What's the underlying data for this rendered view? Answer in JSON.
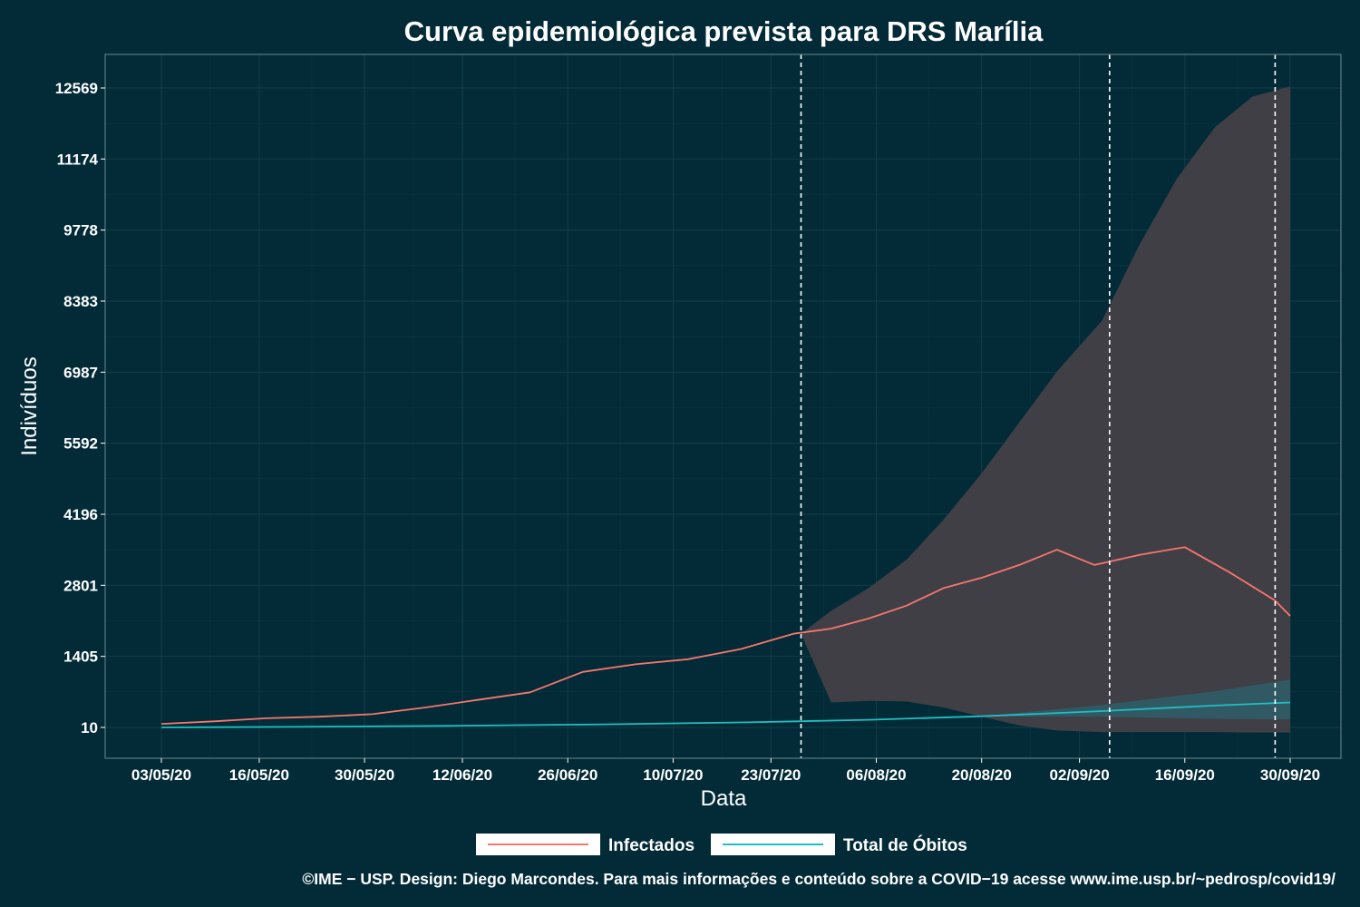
{
  "chart_data": {
    "type": "line",
    "title": "Curva epidemiológica prevista para DRS Marília",
    "xlabel": "Data",
    "ylabel": "Indivíduos",
    "x_range": [
      "2020-05-03",
      "2020-10-01"
    ],
    "y_range": [
      -600,
      13300
    ],
    "y_ticks": [
      10,
      1405,
      2801,
      4196,
      5592,
      6987,
      8383,
      9778,
      11174,
      12569
    ],
    "y_tick_labels": [
      "10",
      "1405",
      "2801",
      "4196",
      "5592",
      "6987",
      "8383",
      "9778",
      "11174",
      "12569"
    ],
    "x_ticks": [
      "2020-05-03",
      "2020-05-16",
      "2020-05-30",
      "2020-06-12",
      "2020-06-26",
      "2020-07-10",
      "2020-07-23",
      "2020-08-06",
      "2020-08-20",
      "2020-09-02",
      "2020-09-16",
      "2020-09-30"
    ],
    "x_tick_labels": [
      "03/05/20",
      "16/05/20",
      "30/05/20",
      "12/06/20",
      "26/06/20",
      "10/07/20",
      "23/07/20",
      "06/08/20",
      "20/08/20",
      "02/09/20",
      "16/09/20",
      "30/09/20"
    ],
    "vlines": [
      "2020-07-27",
      "2020-09-06",
      "2020-09-28"
    ],
    "grid": true,
    "legend_position": "bottom",
    "colors": {
      "background": "#022b37",
      "infectados": "#f8766d",
      "obitos": "#1fbfc4",
      "ribbon_infectados": "#403f46",
      "ribbon_obitos": "#2f5e68",
      "grid": "#133c47",
      "frame": "#5a7a82"
    },
    "series": [
      {
        "name": "Infectados",
        "x": [
          "2020-05-03",
          "2020-05-10",
          "2020-05-17",
          "2020-05-24",
          "2020-05-31",
          "2020-06-07",
          "2020-06-14",
          "2020-06-21",
          "2020-06-28",
          "2020-07-05",
          "2020-07-12",
          "2020-07-19",
          "2020-07-26",
          "2020-07-31",
          "2020-08-05",
          "2020-08-10",
          "2020-08-15",
          "2020-08-20",
          "2020-08-25",
          "2020-08-30",
          "2020-09-04",
          "2020-09-10",
          "2020-09-16",
          "2020-09-22",
          "2020-09-28",
          "2020-09-30"
        ],
        "values": [
          80,
          130,
          190,
          220,
          270,
          400,
          550,
          700,
          1100,
          1250,
          1350,
          1550,
          1850,
          1950,
          2150,
          2400,
          2750,
          2950,
          3200,
          3500,
          3200,
          3400,
          3550,
          3050,
          2500,
          2200
        ]
      },
      {
        "name": "Total de Óbitos",
        "x": [
          "2020-05-03",
          "2020-05-20",
          "2020-06-10",
          "2020-07-01",
          "2020-07-20",
          "2020-08-05",
          "2020-08-20",
          "2020-09-05",
          "2020-09-20",
          "2020-09-30"
        ],
        "values": [
          10,
          20,
          40,
          70,
          110,
          160,
          230,
          330,
          440,
          500
        ]
      }
    ],
    "bands": [
      {
        "name": "Infectados",
        "x": [
          "2020-07-27",
          "2020-07-31",
          "2020-08-05",
          "2020-08-10",
          "2020-08-15",
          "2020-08-20",
          "2020-08-25",
          "2020-08-30",
          "2020-09-05",
          "2020-09-10",
          "2020-09-15",
          "2020-09-20",
          "2020-09-25",
          "2020-09-30"
        ],
        "upper": [
          1850,
          2300,
          2750,
          3300,
          4100,
          5000,
          6000,
          7000,
          8000,
          9500,
          10800,
          11800,
          12400,
          12600
        ],
        "lower": [
          1850,
          500,
          530,
          520,
          400,
          220,
          50,
          -50,
          -80,
          -80,
          -80,
          -80,
          -90,
          -90
        ]
      },
      {
        "name": "Total de Óbitos",
        "x": [
          "2020-08-20",
          "2020-09-05",
          "2020-09-20",
          "2020-09-30"
        ],
        "upper": [
          230,
          450,
          720,
          950
        ],
        "lower": [
          230,
          220,
          180,
          170
        ]
      }
    ]
  },
  "footer": "©IME − USP. Design: Diego Marcondes. Para mais informações e conteúdo sobre a COVID−19 acesse www.ime.usp.br/~pedrosp/covid19/"
}
